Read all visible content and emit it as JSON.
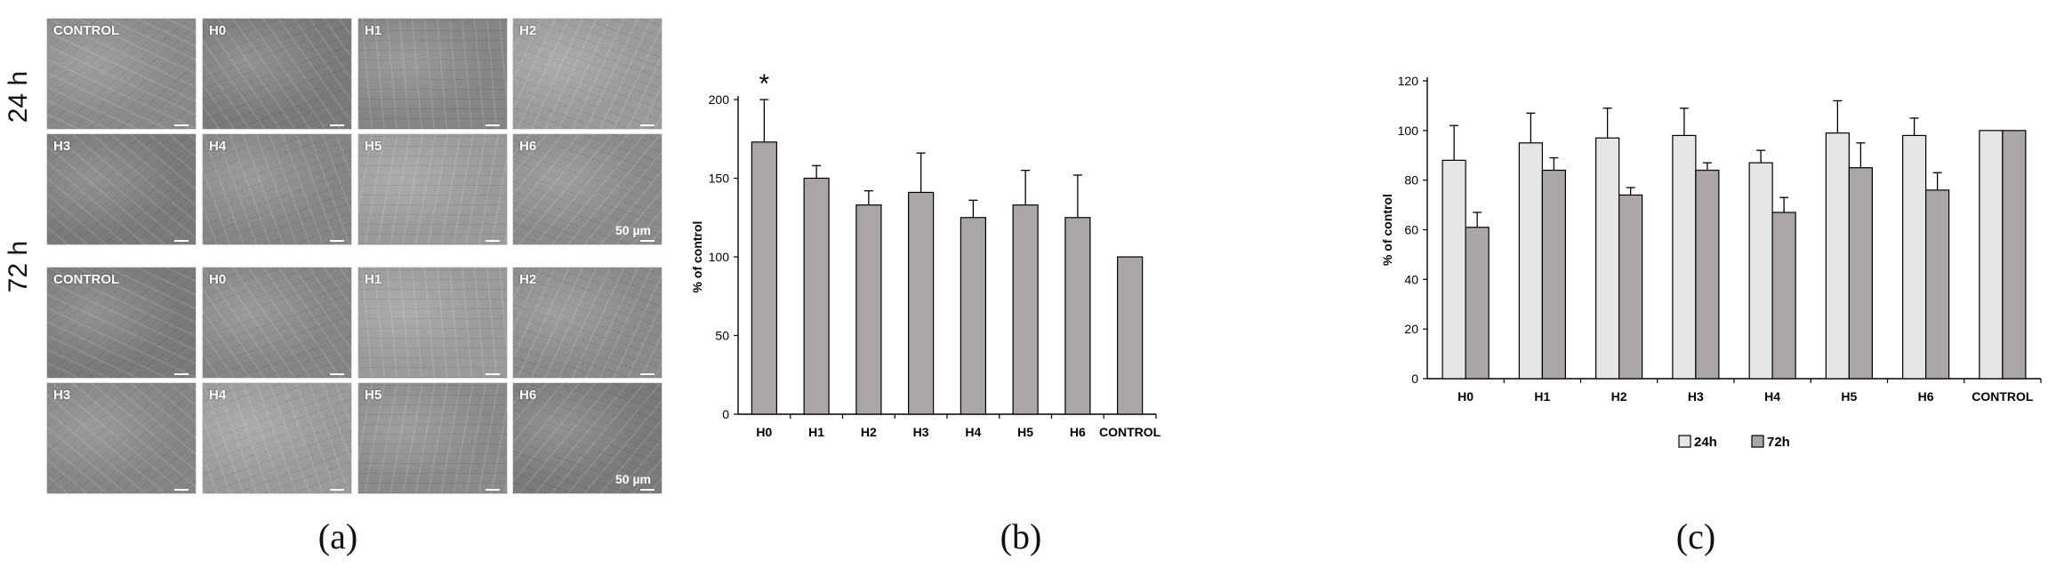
{
  "panel_a": {
    "caption": "(a)",
    "groups": [
      {
        "time_label": "24 h",
        "rows": [
          [
            {
              "label": "CONTROL"
            },
            {
              "label": "H0"
            },
            {
              "label": "H1"
            },
            {
              "label": "H2"
            }
          ],
          [
            {
              "label": "H3"
            },
            {
              "label": "H4"
            },
            {
              "label": "H5"
            },
            {
              "label": "H6",
              "scale": "50 µm"
            }
          ]
        ]
      },
      {
        "time_label": "72 h",
        "rows": [
          [
            {
              "label": "CONTROL"
            },
            {
              "label": "H0"
            },
            {
              "label": "H1"
            },
            {
              "label": "H2"
            }
          ],
          [
            {
              "label": "H3"
            },
            {
              "label": "H4"
            },
            {
              "label": "H5"
            },
            {
              "label": "H6",
              "scale": "50 µm"
            }
          ]
        ]
      }
    ],
    "colors": {
      "micrograph_bg": "#7c7c7c",
      "label": "#ffffff"
    }
  },
  "chart_data": [
    {
      "panel": "b",
      "type": "bar",
      "caption": "(b)",
      "categories": [
        "H0",
        "H1",
        "H2",
        "H3",
        "H4",
        "H5",
        "H6",
        "CONTROL"
      ],
      "series": [
        {
          "values": [
            173,
            150,
            133,
            141,
            125,
            133,
            125,
            100
          ],
          "errors": [
            27,
            8,
            9,
            25,
            11,
            22,
            27,
            0
          ],
          "color": "#aaa6a6"
        }
      ],
      "annotations": [
        {
          "category": "H0",
          "text": "*"
        }
      ],
      "ylabel": "% of control",
      "ylim": [
        0,
        200
      ],
      "yticks": [
        0,
        50,
        100,
        150,
        200
      ],
      "grid": false,
      "legend": "none"
    },
    {
      "panel": "c",
      "type": "bar",
      "caption": "(c)",
      "categories": [
        "H0",
        "H1",
        "H2",
        "H3",
        "H4",
        "H5",
        "H6",
        "CONTROL"
      ],
      "series": [
        {
          "name": "24h",
          "color": "#e6e6e6",
          "values": [
            88,
            95,
            97,
            98,
            87,
            99,
            98,
            100
          ],
          "errors": [
            14,
            12,
            12,
            11,
            5,
            13,
            7,
            0
          ]
        },
        {
          "name": "72h",
          "color": "#aaa6a6",
          "values": [
            61,
            84,
            74,
            84,
            67,
            85,
            76,
            100
          ],
          "errors": [
            6,
            5,
            3,
            3,
            6,
            10,
            7,
            0
          ]
        }
      ],
      "ylabel": "% of control",
      "ylim": [
        0,
        120
      ],
      "yticks": [
        0,
        20,
        40,
        60,
        80,
        100,
        120
      ],
      "grid": false,
      "legend": "bottom"
    }
  ]
}
